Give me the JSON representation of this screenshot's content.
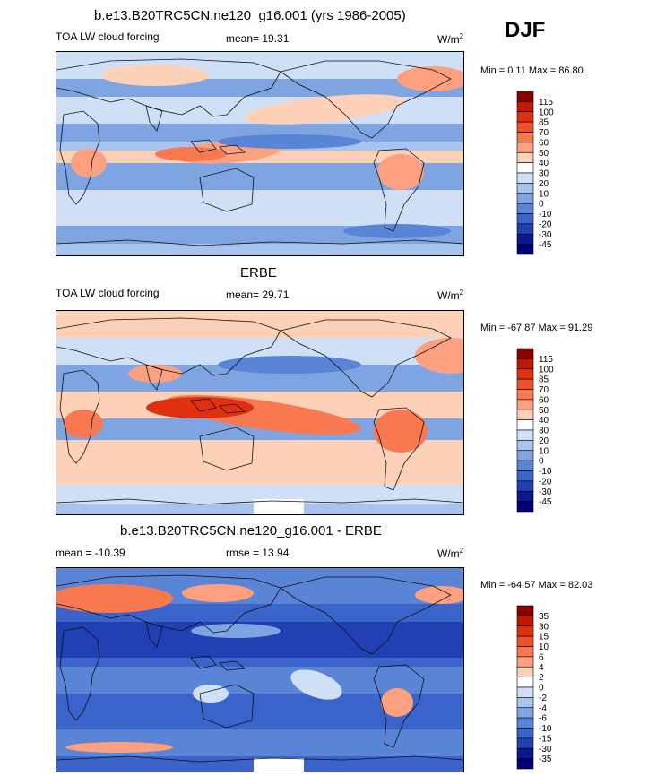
{
  "header": {
    "title": "b.e13.B20TRC5CN.ne120_g16.001 (yrs 1986-2005)",
    "season": "DJF"
  },
  "panels": [
    {
      "id": "model",
      "title": "",
      "left_label": "TOA LW cloud forcing",
      "center_label": "mean=  19.31",
      "units_base": "W/m",
      "units_exp": "2",
      "minmax": "Min =   0.11 Max =  86.80"
    },
    {
      "id": "obs",
      "title": "ERBE",
      "left_label": "TOA LW cloud forcing",
      "center_label": "mean=  29.71",
      "units_base": "W/m",
      "units_exp": "2",
      "minmax": "Min = -67.87 Max =  91.29"
    },
    {
      "id": "diff",
      "title": "b.e13.B20TRC5CN.ne120_g16.001 - ERBE",
      "left_label": "mean = -10.39",
      "center_label": "rmse =  13.94",
      "units_base": "W/m",
      "units_exp": "2",
      "minmax": "Min = -64.57 Max =  82.03"
    }
  ],
  "chart_data": [
    {
      "type": "heatmap",
      "title": "TOA LW cloud forcing",
      "units": "W/m2",
      "mean": 19.31,
      "min": 0.11,
      "max": 86.8,
      "colorbar_levels": [
        "115",
        "100",
        "85",
        "70",
        "60",
        "50",
        "40",
        "30",
        "20",
        "10",
        "0",
        "-10",
        "-20",
        "-30",
        "-45"
      ],
      "colorbar_colors": [
        "#8b0000",
        "#c01800",
        "#e03010",
        "#f05028",
        "#f87850",
        "#fca080",
        "#fdd0b8",
        "#ffffff",
        "#cfe0f6",
        "#a8c4ee",
        "#7ea4e2",
        "#5a84d6",
        "#3a64ca",
        "#2040b4",
        "#0c1890",
        "#000078"
      ]
    },
    {
      "type": "heatmap",
      "title": "ERBE",
      "units": "W/m2",
      "mean": 29.71,
      "min": -67.87,
      "max": 91.29,
      "colorbar_levels": [
        "115",
        "100",
        "85",
        "70",
        "60",
        "50",
        "40",
        "30",
        "20",
        "10",
        "0",
        "-10",
        "-20",
        "-30",
        "-45"
      ],
      "colorbar_colors": [
        "#8b0000",
        "#c01800",
        "#e03010",
        "#f05028",
        "#f87850",
        "#fca080",
        "#fdd0b8",
        "#ffffff",
        "#cfe0f6",
        "#a8c4ee",
        "#7ea4e2",
        "#5a84d6",
        "#3a64ca",
        "#2040b4",
        "#0c1890",
        "#000078"
      ]
    },
    {
      "type": "heatmap",
      "title": "b.e13.B20TRC5CN.ne120_g16.001 - ERBE",
      "units": "W/m2",
      "mean": -10.39,
      "rmse": 13.94,
      "min": -64.57,
      "max": 82.03,
      "colorbar_levels": [
        "35",
        "30",
        "15",
        "10",
        "6",
        "4",
        "2",
        "0",
        "-2",
        "-4",
        "-6",
        "-10",
        "-15",
        "-30",
        "-35"
      ],
      "colorbar_colors": [
        "#8b0000",
        "#c01800",
        "#e03010",
        "#f05028",
        "#f87850",
        "#fca080",
        "#fdd0b8",
        "#ffffff",
        "#cfe0f6",
        "#a8c4ee",
        "#7ea4e2",
        "#5a84d6",
        "#3a64ca",
        "#2040b4",
        "#0c1890",
        "#000078"
      ]
    }
  ]
}
